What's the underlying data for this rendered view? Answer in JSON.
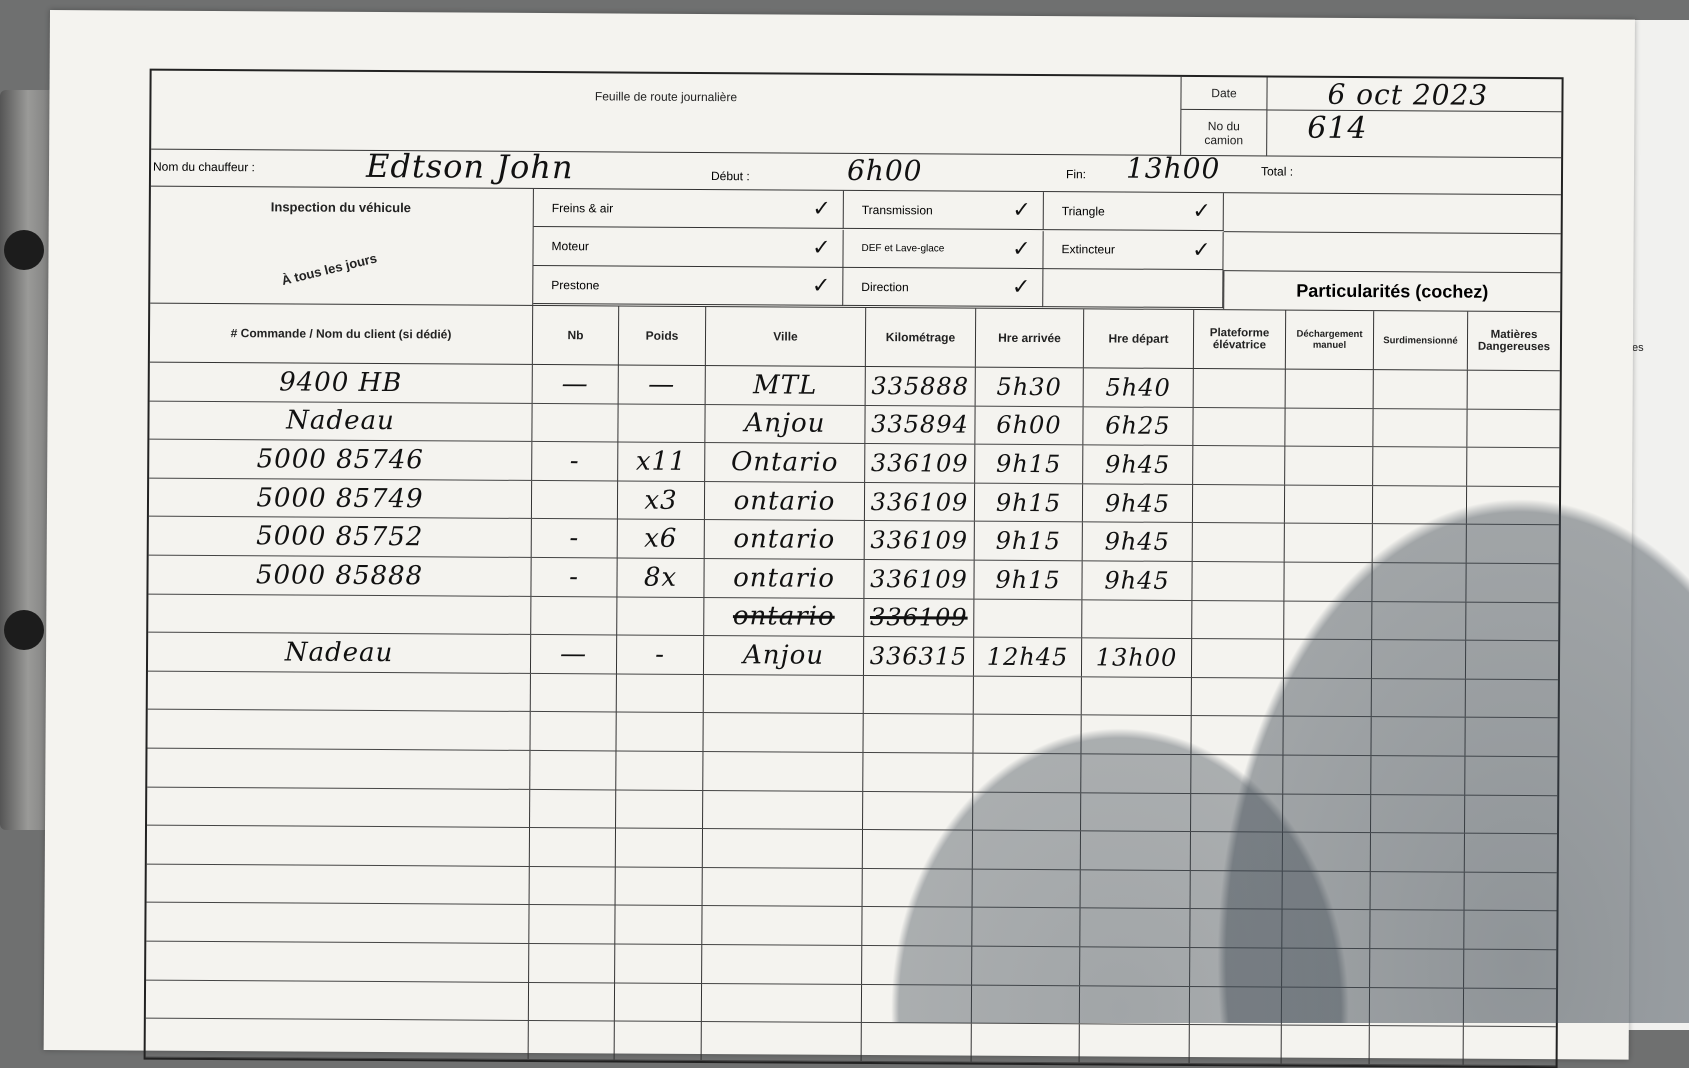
{
  "form": {
    "title": "Feuille de route journalière",
    "date_label": "Date",
    "date_value": "6 oct 2023",
    "truck_label": "No du camion",
    "truck_value": "614",
    "driver_label": "Nom du chauffeur :",
    "driver_value": "Edtson John",
    "start_label": "Début :",
    "start_value": "6h00",
    "end_label": "Fin:",
    "end_value": "13h00",
    "total_label": "Total :",
    "total_value": ""
  },
  "inspection": {
    "title": "Inspection du véhicule",
    "note": "À tous les jours",
    "items": [
      {
        "label": "Freins & air",
        "checked": true
      },
      {
        "label": "Transmission",
        "checked": true
      },
      {
        "label": "Triangle",
        "checked": true
      },
      {
        "label": "Moteur",
        "checked": true
      },
      {
        "label": "DEF et Lave-glace",
        "checked": true
      },
      {
        "label": "Extincteur",
        "checked": true
      },
      {
        "label": "Prestone",
        "checked": true
      },
      {
        "label": "Direction",
        "checked": true
      }
    ],
    "check_glyph": "✓"
  },
  "particularites_title": "Particularités (cochez)",
  "columns": [
    "# Commande / Nom du client (si dédié)",
    "Nb",
    "Poids",
    "Ville",
    "Kilométrage",
    "Hre arrivée",
    "Hre départ",
    "Plateforme élévatrice",
    "Déchargement manuel",
    "Surdimensionné",
    "Matières Dangereuses"
  ],
  "rows": [
    {
      "commande": "9400 HB",
      "nb": "—",
      "poids": "—",
      "ville": "MTL",
      "km": "335888",
      "arrivee": "5h30",
      "depart": "5h40"
    },
    {
      "commande": "Nadeau",
      "nb": "",
      "poids": "",
      "ville": "Anjou",
      "km": "335894",
      "arrivee": "6h00",
      "depart": "6h25"
    },
    {
      "commande": "5000 85746",
      "nb": "-",
      "poids": "x11",
      "ville": "Ontario",
      "km": "336109",
      "arrivee": "9h15",
      "depart": "9h45"
    },
    {
      "commande": "5000 85749",
      "nb": "",
      "poids": "x3",
      "ville": "ontario",
      "km": "336109",
      "arrivee": "9h15",
      "depart": "9h45"
    },
    {
      "commande": "5000 85752",
      "nb": "-",
      "poids": "x6",
      "ville": "ontario",
      "km": "336109",
      "arrivee": "9h15",
      "depart": "9h45"
    },
    {
      "commande": "5000 85888",
      "nb": "-",
      "poids": "8x",
      "ville": "ontario",
      "km": "336109",
      "arrivee": "9h15",
      "depart": "9h45"
    },
    {
      "commande": "",
      "nb": "",
      "poids": "",
      "ville": "ontario",
      "km": "336109",
      "arrivee": "",
      "depart": "",
      "struck": true
    },
    {
      "commande": "Nadeau",
      "nb": "—",
      "poids": "-",
      "ville": "Anjou",
      "km": "336315",
      "arrivee": "12h45",
      "depart": "13h00"
    }
  ],
  "side_sheet_text": "es"
}
